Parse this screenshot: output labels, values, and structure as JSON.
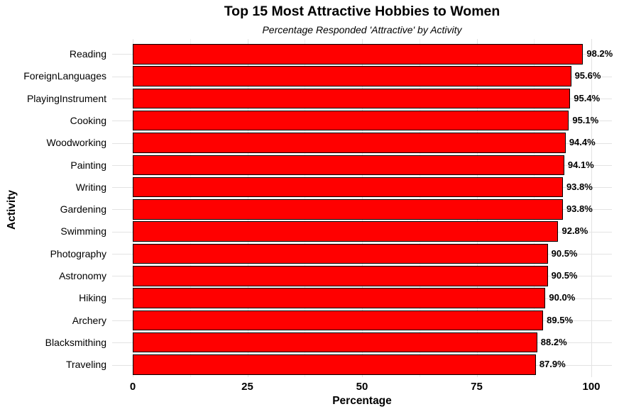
{
  "chart_data": {
    "type": "bar",
    "orientation": "horizontal",
    "title": "Top 15 Most Attractive Hobbies to Women",
    "subtitle": "Percentage Responded 'Attractive' by Activity",
    "xlabel": "Percentage",
    "ylabel": "Activity",
    "categories": [
      "Reading",
      "ForeignLanguages",
      "PlayingInstrument",
      "Cooking",
      "Woodworking",
      "Painting",
      "Writing",
      "Gardening",
      "Swimming",
      "Photography",
      "Astronomy",
      "Hiking",
      "Archery",
      "Blacksmithing",
      "Traveling"
    ],
    "values": [
      98.2,
      95.6,
      95.4,
      95.1,
      94.4,
      94.1,
      93.8,
      93.8,
      92.8,
      90.5,
      90.5,
      90.0,
      89.5,
      88.2,
      87.9
    ],
    "value_labels": [
      "98.2%",
      "95.6%",
      "95.4%",
      "95.1%",
      "94.4%",
      "94.1%",
      "93.8%",
      "93.8%",
      "92.8%",
      "90.5%",
      "90.5%",
      "90.0%",
      "89.5%",
      "88.2%",
      "87.9%"
    ],
    "x_ticks": [
      0,
      25,
      50,
      75,
      100
    ],
    "x_tick_labels": [
      "0",
      "25",
      "50",
      "75",
      "100"
    ],
    "x_minor_ticks": [
      12.5,
      37.5,
      62.5,
      87.5
    ],
    "xlim": [
      0,
      100
    ],
    "grid": true,
    "legend_position": "none",
    "colors": {
      "bar_fill": "#FF0000",
      "bar_border": "#000000",
      "grid_major": "#E3E3E3",
      "grid_minor": "#F0F0F0",
      "text": "#000000",
      "background": "#FFFFFF"
    }
  }
}
